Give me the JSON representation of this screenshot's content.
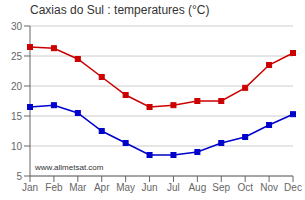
{
  "chart_data": {
    "type": "line",
    "title": "Caxias do Sul : temperatures (°C)",
    "categories": [
      "Jan",
      "Feb",
      "Mar",
      "Apr",
      "May",
      "Jun",
      "Jul",
      "Aug",
      "Sep",
      "Oct",
      "Nov",
      "Dec"
    ],
    "series": [
      {
        "color": "#cc0000",
        "marker": "square",
        "values": [
          26.5,
          26.3,
          24.5,
          21.5,
          18.5,
          16.5,
          16.8,
          17.5,
          17.5,
          19.7,
          23.5,
          25.5
        ]
      },
      {
        "color": "#0000cc",
        "marker": "square",
        "values": [
          16.5,
          16.8,
          15.5,
          12.5,
          10.5,
          8.5,
          8.5,
          9.0,
          10.5,
          11.5,
          13.5,
          15.3
        ]
      }
    ],
    "ylim": [
      5,
      30
    ],
    "yticks": [
      5,
      10,
      15,
      20,
      25,
      30
    ],
    "grid": true,
    "annotations": [
      "www.allmetsat.com"
    ]
  }
}
